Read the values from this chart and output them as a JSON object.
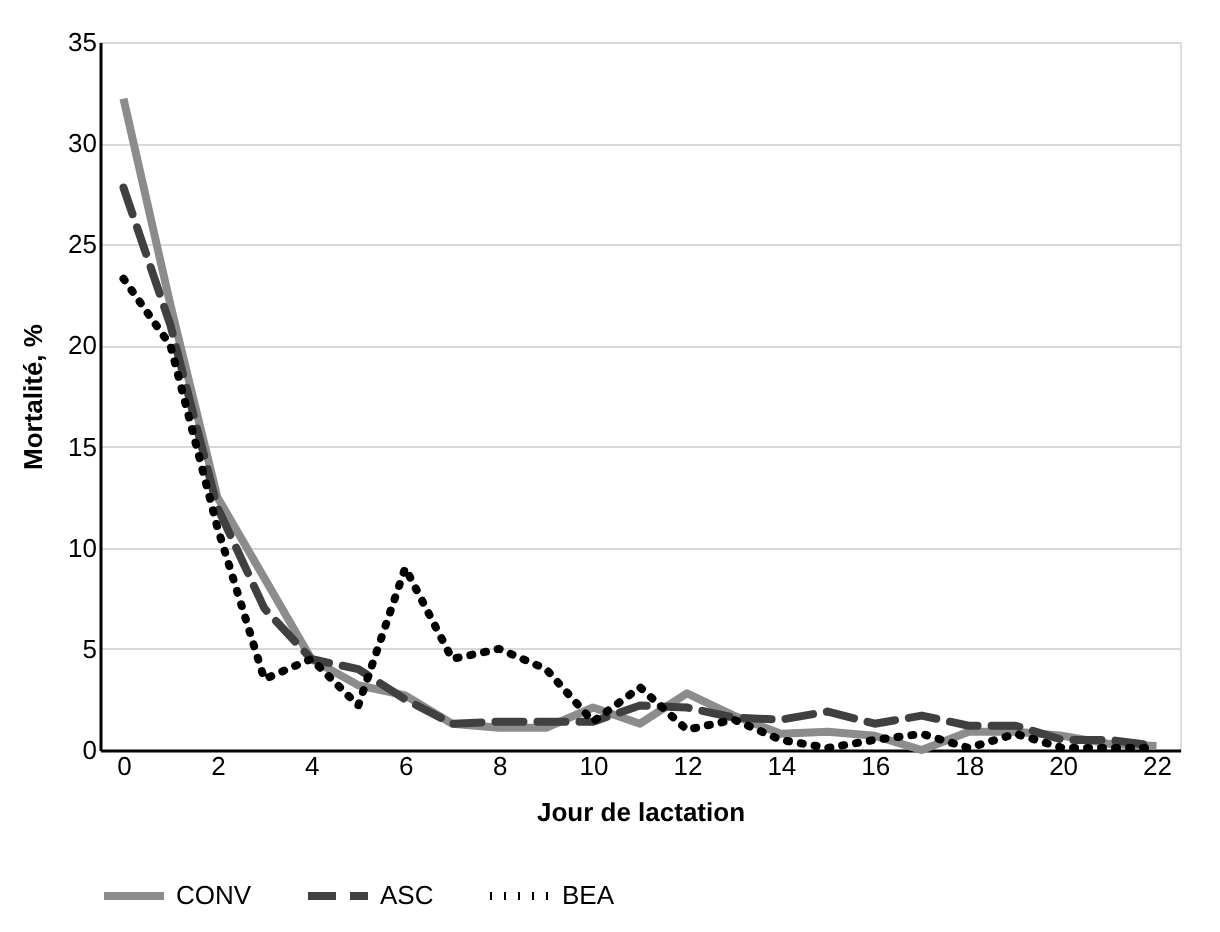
{
  "chart_data": {
    "type": "line",
    "xlabel": "Jour de lactation",
    "ylabel": "Mortalité, %",
    "x": [
      0,
      1,
      2,
      3,
      4,
      5,
      6,
      7,
      8,
      9,
      10,
      11,
      12,
      13,
      14,
      15,
      16,
      17,
      18,
      19,
      20,
      21,
      22
    ],
    "xlim": [
      -0.5,
      22.5
    ],
    "xticks": [
      0,
      2,
      4,
      6,
      8,
      10,
      12,
      14,
      16,
      18,
      20,
      22
    ],
    "ylim": [
      0,
      35
    ],
    "yticks": [
      0,
      5,
      10,
      15,
      20,
      25,
      30,
      35
    ],
    "grid": "y",
    "legend": "bottom",
    "series": [
      {
        "name": "CONV",
        "color": "#8c8c8c",
        "line_style": "solid",
        "values": [
          32.2,
          22,
          12.5,
          8.5,
          4.5,
          3.2,
          2.7,
          1.3,
          1.1,
          1.1,
          2.1,
          1.3,
          2.8,
          1.7,
          0.8,
          0.9,
          0.7,
          0,
          0.9,
          0.9,
          0.7,
          0.3,
          0.2
        ]
      },
      {
        "name": "ASC",
        "color": "#404040",
        "line_style": "dashed",
        "values": [
          27.8,
          21,
          12,
          7,
          4.5,
          4,
          2.5,
          1.3,
          1.4,
          1.4,
          1.4,
          2.2,
          2.1,
          1.6,
          1.5,
          1.9,
          1.3,
          1.7,
          1.2,
          1.2,
          0.5,
          0.5,
          0.2
        ]
      },
      {
        "name": "BEA",
        "color": "#000000",
        "line_style": "dotted",
        "values": [
          23.3,
          20,
          11,
          3.5,
          4.5,
          2.2,
          9,
          4.5,
          5,
          4,
          1.4,
          3.1,
          1,
          1.5,
          0.5,
          0.1,
          0.5,
          0.8,
          0.1,
          0.8,
          0.1,
          0.1,
          0.1
        ]
      }
    ]
  }
}
